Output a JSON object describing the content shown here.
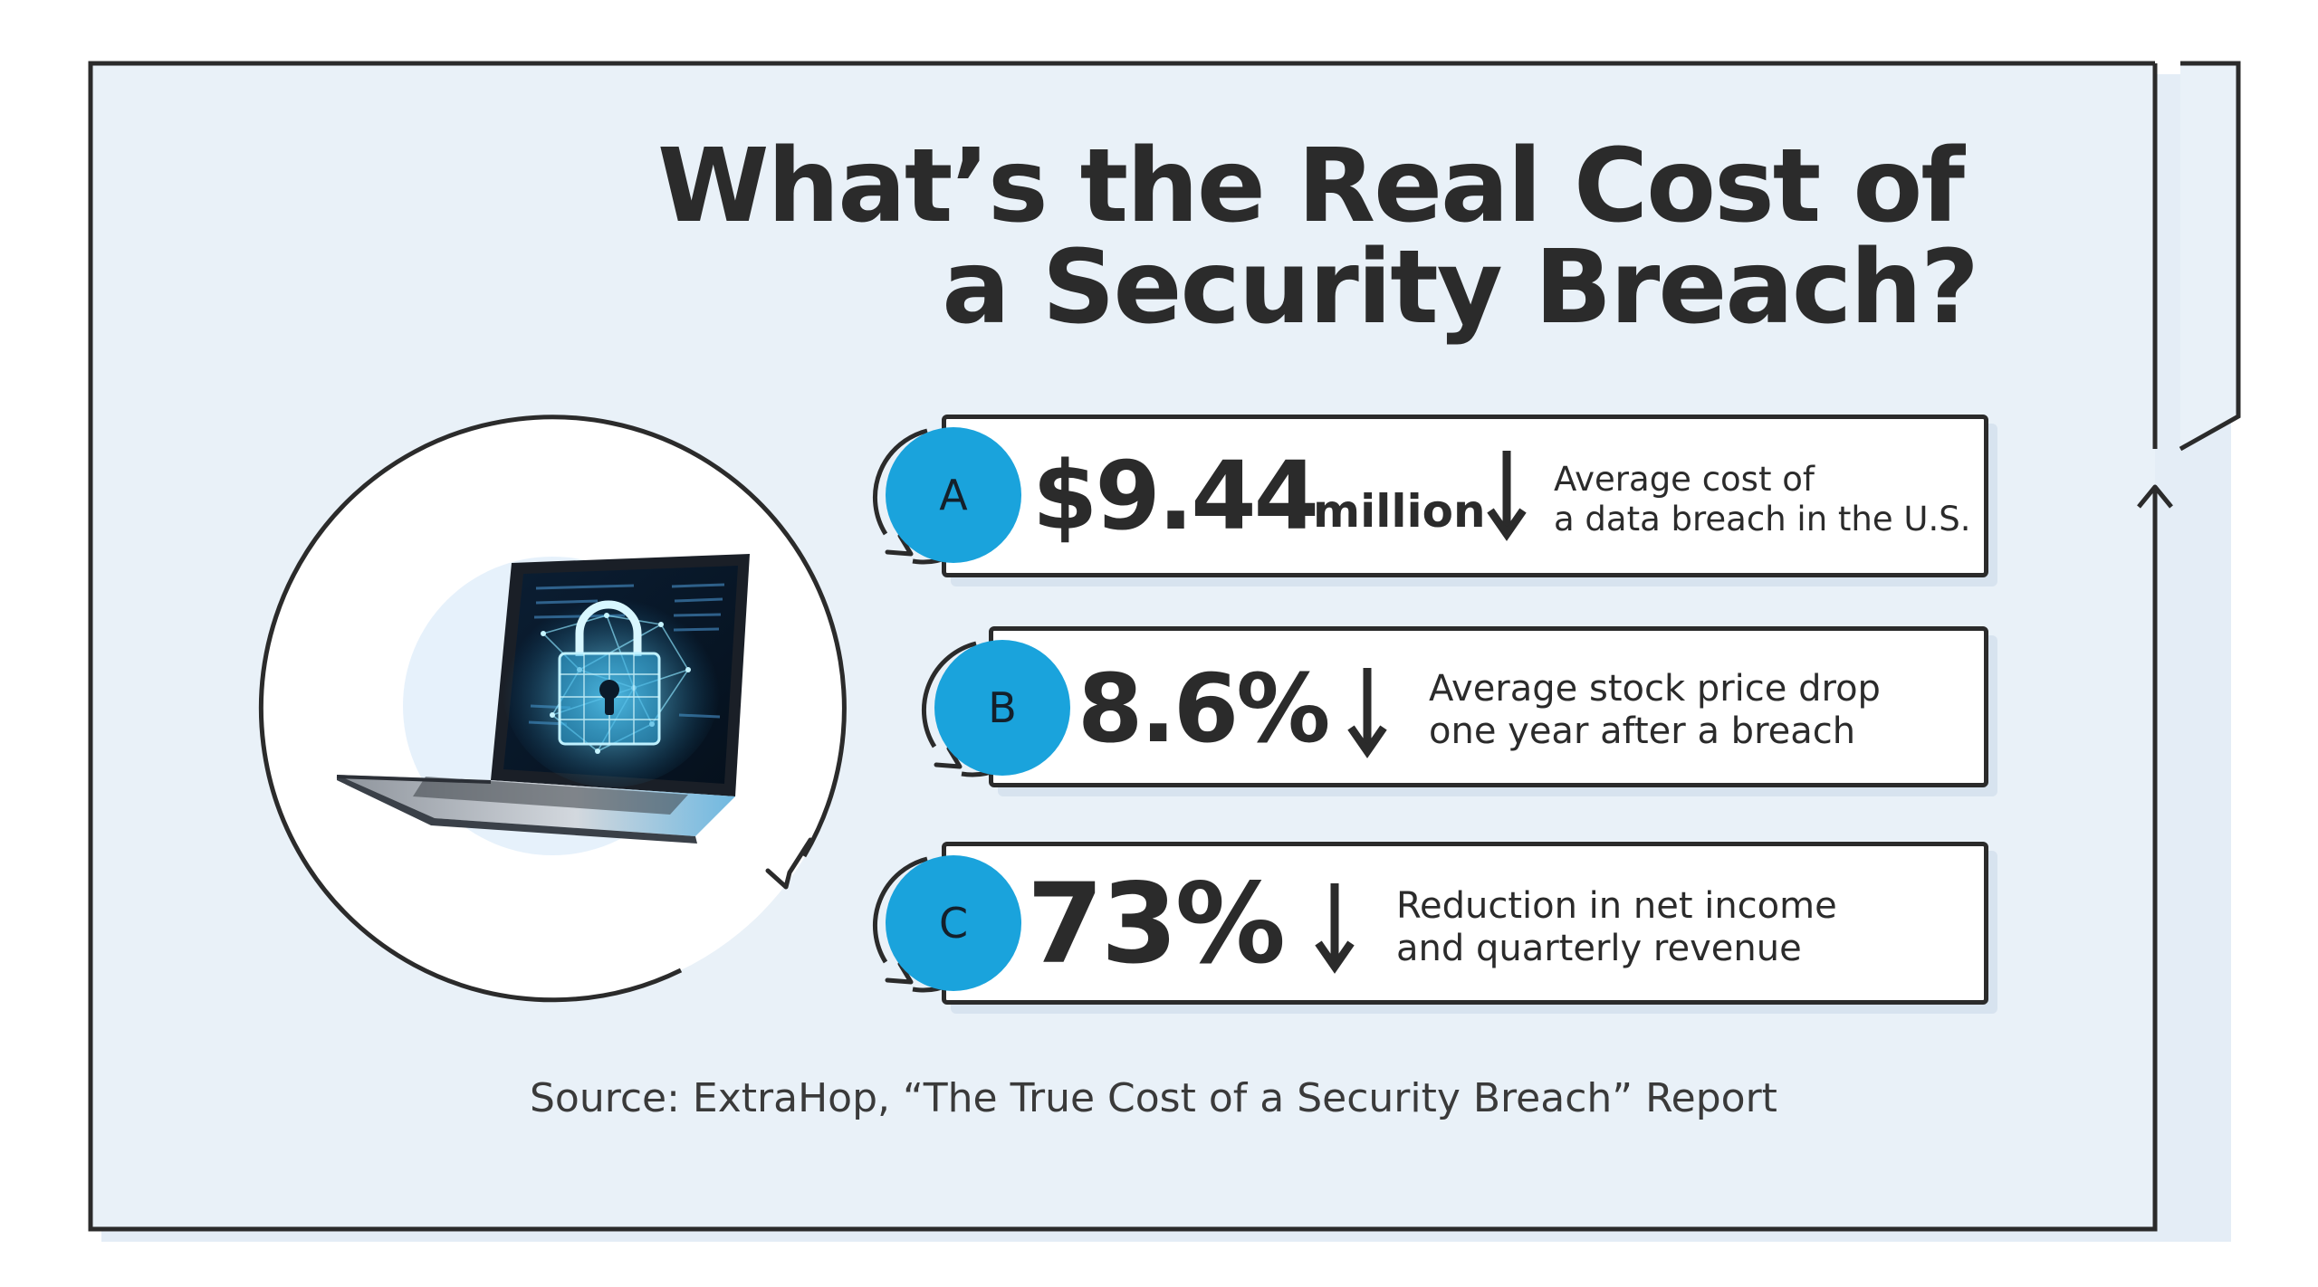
{
  "title": {
    "line1": "What’s the Real Cost of",
    "line2": "a Security Breach?"
  },
  "stats": [
    {
      "badge": "A",
      "value": "$9.44",
      "unit": "million",
      "trend": "down",
      "description": [
        "Average cost of",
        "a data breach in the U.S."
      ]
    },
    {
      "badge": "B",
      "value": "8.6%",
      "unit": "",
      "trend": "down",
      "description": [
        "Average stock price drop",
        "one year after a breach"
      ]
    },
    {
      "badge": "C",
      "value": "73%",
      "unit": "",
      "trend": "down",
      "description": [
        "Reduction in net income",
        "and quarterly revenue"
      ]
    }
  ],
  "source": "Source: ExtraHop, “The True Cost of a Security Breach” Report",
  "illustration": {
    "subject": "laptop-with-padlock-icon"
  },
  "colors": {
    "background": "#e9f1f8",
    "accent": "#1aa3dc",
    "ink": "#2b2b2b"
  }
}
